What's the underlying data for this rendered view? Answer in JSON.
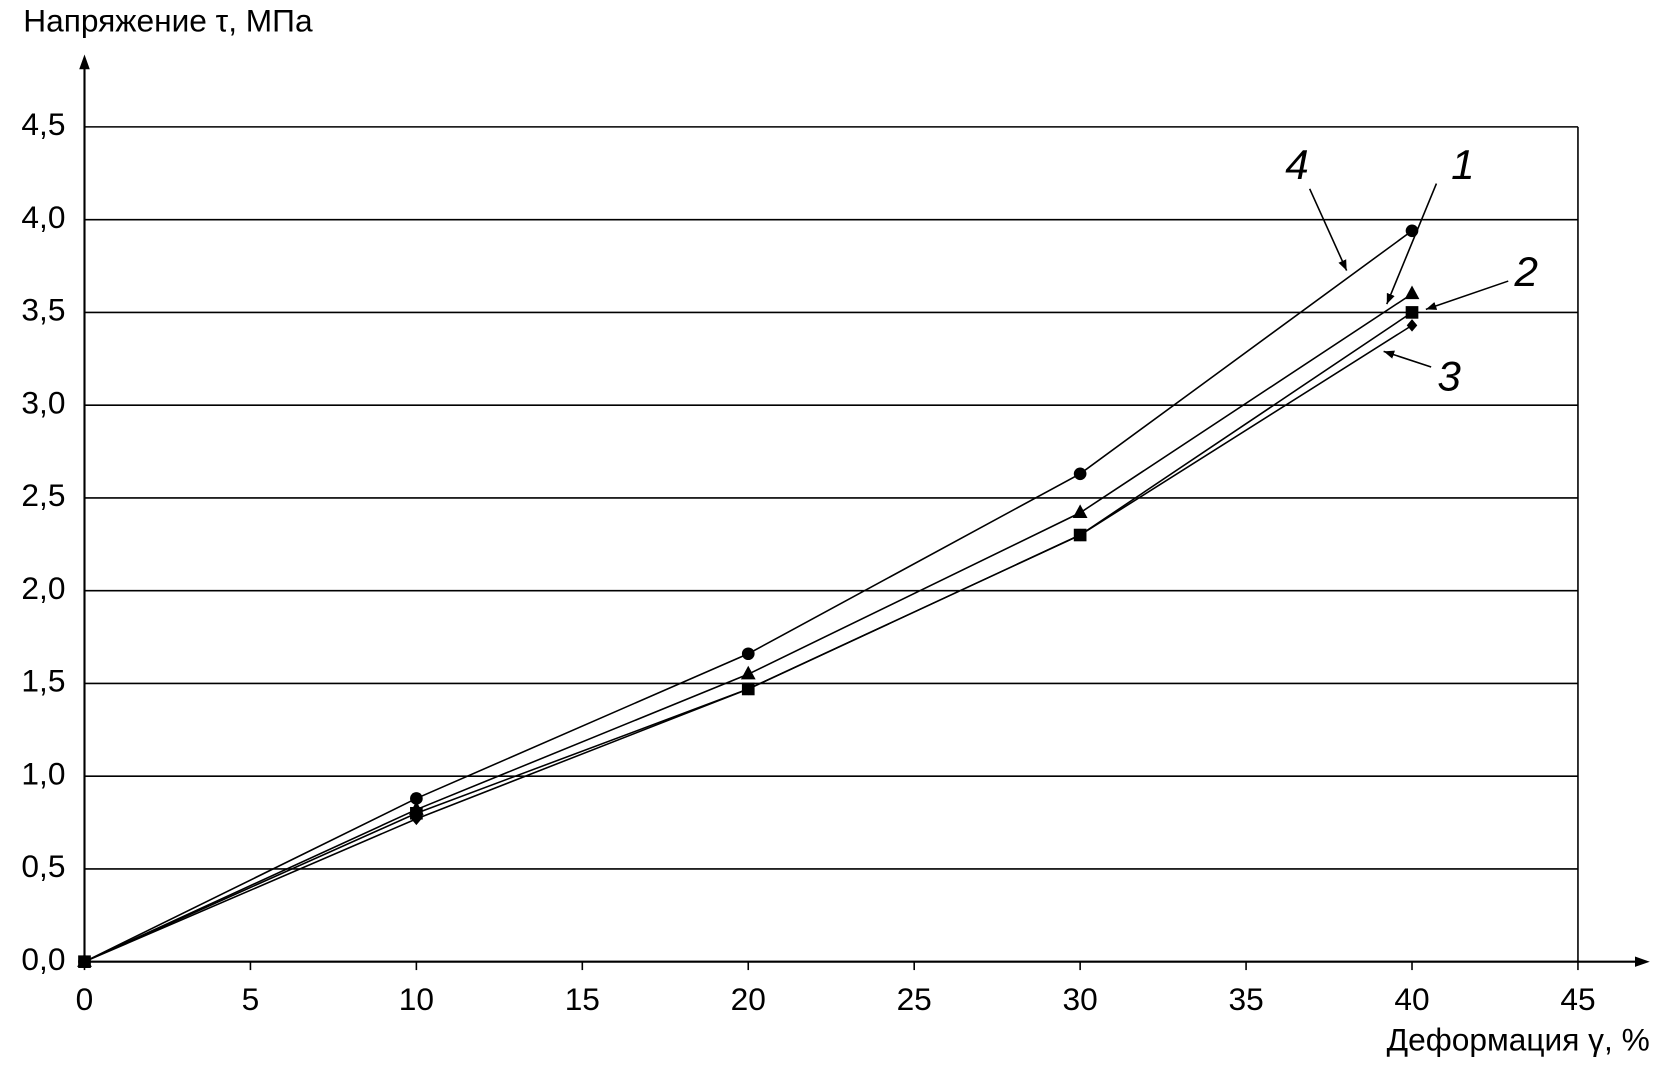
{
  "chart_data": {
    "type": "line",
    "y_label": "Напряжение τ, МПа",
    "x_label": "Деформация  γ, %",
    "x": [
      0,
      10,
      20,
      30,
      40
    ],
    "series": [
      {
        "name": "1",
        "color": "#000000",
        "marker": "triangle",
        "values": [
          0,
          0.82,
          1.55,
          2.42,
          3.6
        ]
      },
      {
        "name": "2",
        "color": "#000000",
        "marker": "square",
        "values": [
          0,
          0.8,
          1.47,
          2.3,
          3.5
        ]
      },
      {
        "name": "3",
        "color": "#000000",
        "marker": "diamond",
        "values": [
          0,
          0.77,
          1.47,
          2.3,
          3.43
        ]
      },
      {
        "name": "4",
        "color": "#000000",
        "marker": "circle",
        "values": [
          0,
          0.88,
          1.66,
          2.63,
          3.94
        ]
      }
    ],
    "xlim": [
      0,
      45
    ],
    "ylim": [
      0,
      4.5
    ],
    "xticks": [
      0,
      5,
      10,
      15,
      20,
      25,
      30,
      35,
      40,
      45
    ],
    "yticks": [
      {
        "value": 0,
        "label": "0,0"
      },
      {
        "value": 0.5,
        "label": "0,5"
      },
      {
        "value": 1,
        "label": "1,0"
      },
      {
        "value": 1.5,
        "label": "1,5"
      },
      {
        "value": 2,
        "label": "2,0"
      },
      {
        "value": 2.5,
        "label": "2,5"
      },
      {
        "value": 3,
        "label": "3,0"
      },
      {
        "value": 3.5,
        "label": "3,5"
      },
      {
        "value": 4,
        "label": "4,0"
      },
      {
        "value": 4.5,
        "label": "4,5"
      }
    ],
    "grid": true
  }
}
